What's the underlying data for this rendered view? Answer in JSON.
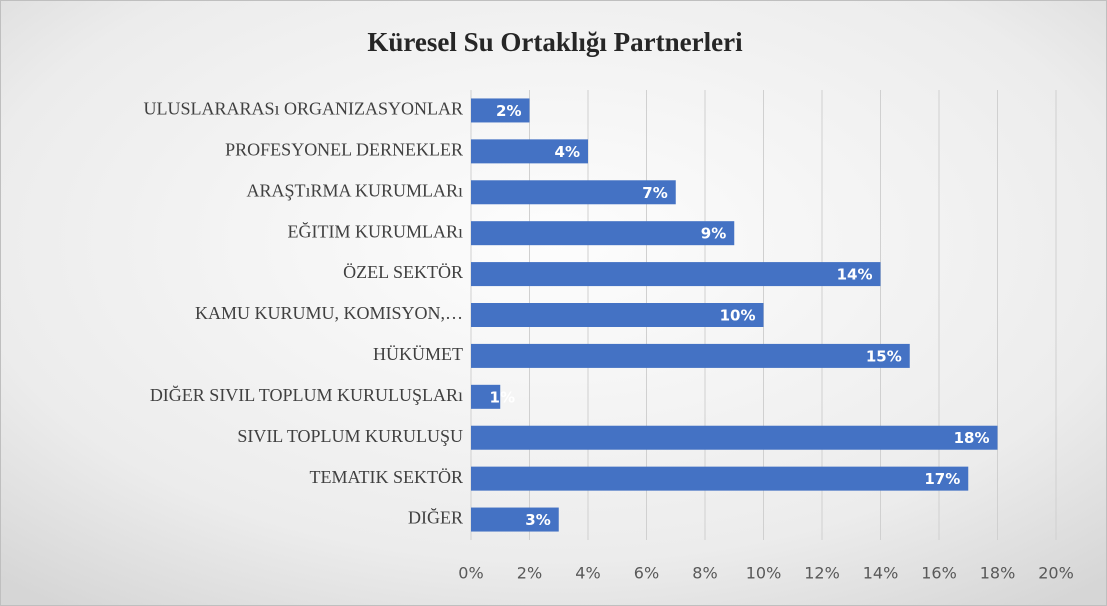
{
  "chart_data": {
    "type": "bar",
    "orientation": "horizontal",
    "title": "Küresel Su Ortaklığı Partnerleri",
    "categories": [
      "ULUSLARARASı ORGANIZASYONLAR",
      "PROFESYONEL DERNEKLER",
      "ARAŞTıRMA KURUMLARı",
      "EĞITIM KURUMLARı",
      "ÖZEL SEKTÖR",
      "KAMU KURUMU, KOMISYON,…",
      "HÜKÜMET",
      "DIĞER SIVIL TOPLUM KURULUŞLARı",
      "SIVIL TOPLUM KURULUŞU",
      "TEMATIK SEKTÖR",
      "DIĞER"
    ],
    "values": [
      2,
      4,
      7,
      9,
      14,
      10,
      15,
      1,
      18,
      17,
      3
    ],
    "value_labels": [
      "2%",
      "4%",
      "7%",
      "9%",
      "14%",
      "10%",
      "15%",
      "1%",
      "18%",
      "17%",
      "3%"
    ],
    "color": "#4472c4",
    "xlim": [
      0,
      20
    ],
    "xticks": [
      {
        "value": 0,
        "label": "0%"
      },
      {
        "value": 2,
        "label": "2%"
      },
      {
        "value": 4,
        "label": "4%"
      },
      {
        "value": 6,
        "label": "6%"
      },
      {
        "value": 8,
        "label": "8%"
      },
      {
        "value": 10,
        "label": "10%"
      },
      {
        "value": 12,
        "label": "12%"
      },
      {
        "value": 14,
        "label": "14%"
      },
      {
        "value": 16,
        "label": "16%"
      },
      {
        "value": 18,
        "label": "18%"
      },
      {
        "value": 20,
        "label": "20%"
      }
    ],
    "grid": true
  }
}
